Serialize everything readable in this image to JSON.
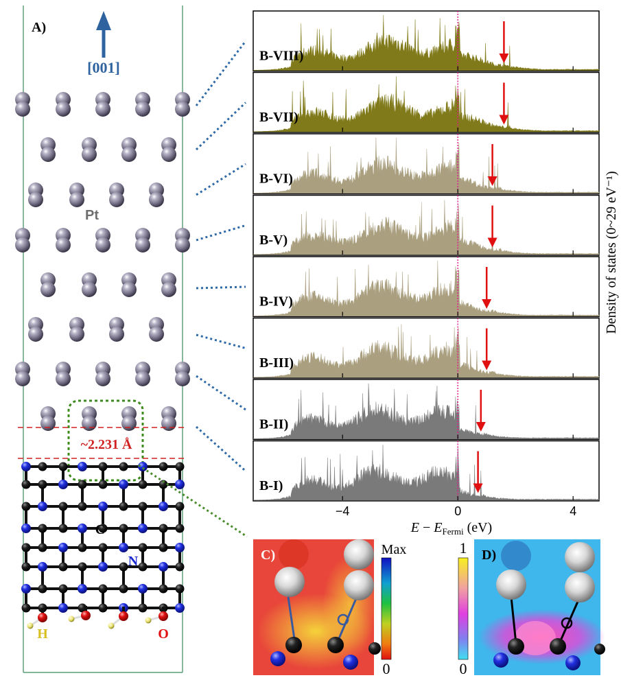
{
  "panel_a": {
    "label": "A)",
    "direction": "[001]",
    "pt_label": "Pt",
    "c_label": "C",
    "n_label": "N",
    "h_label": "H",
    "o_label": "O",
    "bond_distance": "~2.231 Å"
  },
  "panel_c": {
    "label": "C)",
    "scale_max": "Max",
    "scale_min": "0"
  },
  "panel_d": {
    "label": "D)",
    "scale_max": "1",
    "scale_min": "0"
  },
  "colors": {
    "olive_fill": "#807a1a",
    "tan_fill": "#aaa080",
    "gray_fill": "#7a7a7a",
    "fermi_line": "#e0138c",
    "arrow": "#e01010",
    "dotted_blue": "#2f6aa8",
    "dotted_green": "#4a8c2a",
    "c_red": "#e84b3a",
    "d_blue": "#3fb6ec"
  },
  "chart_data": {
    "type": "area",
    "xlabel_prefix": "E",
    "xlabel_sub": "Fermi",
    "xlabel_unit": "(eV)",
    "ylabel": "Density of states (0~29 eV⁻¹)",
    "xlim": [
      -7.1,
      4.9
    ],
    "ylim": [
      0,
      29
    ],
    "xticks": [
      -4,
      0,
      4
    ],
    "xtick_labels": [
      "−4",
      "0",
      "4"
    ],
    "fermi_level": 0,
    "series": [
      {
        "name": "B-VIII",
        "fill": "olive",
        "arrow_energy": 1.6,
        "band_range": [
          -5.8,
          1.8
        ]
      },
      {
        "name": "B-VII",
        "fill": "olive",
        "arrow_energy": 1.6,
        "band_range": [
          -5.8,
          1.8
        ]
      },
      {
        "name": "B-VI",
        "fill": "tan",
        "arrow_energy": 1.2,
        "band_range": [
          -5.8,
          1.5
        ]
      },
      {
        "name": "B-V",
        "fill": "tan",
        "arrow_energy": 1.2,
        "band_range": [
          -5.8,
          1.5
        ]
      },
      {
        "name": "B-IV",
        "fill": "tan",
        "arrow_energy": 1.0,
        "band_range": [
          -5.8,
          1.3
        ]
      },
      {
        "name": "B-III",
        "fill": "tan",
        "arrow_energy": 1.0,
        "band_range": [
          -5.8,
          1.3
        ]
      },
      {
        "name": "B-II",
        "fill": "gray",
        "arrow_energy": 0.8,
        "band_range": [
          -5.8,
          1.0
        ]
      },
      {
        "name": "B-I",
        "fill": "gray",
        "arrow_energy": 0.7,
        "band_range": [
          -5.8,
          0.9
        ]
      }
    ]
  }
}
